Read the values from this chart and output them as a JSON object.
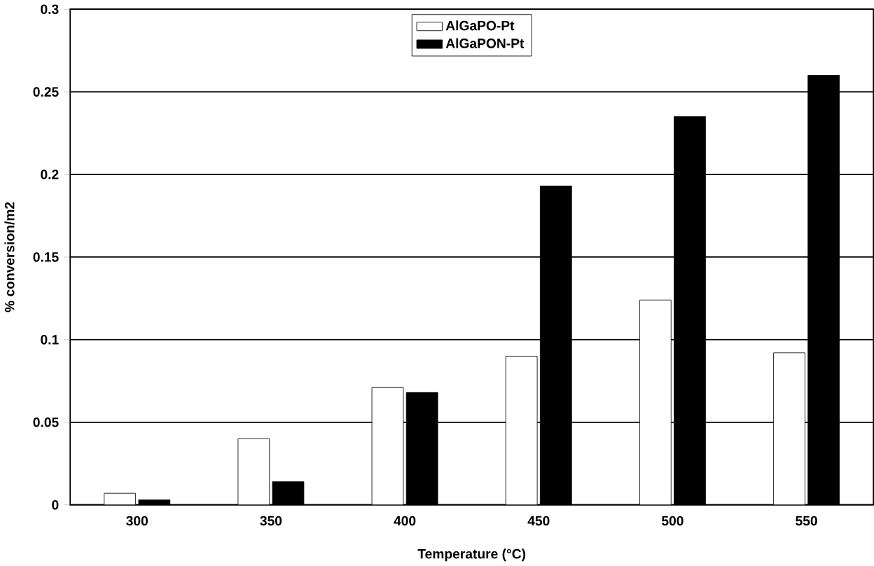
{
  "chart_data": {
    "type": "bar",
    "xlabel": "Temperature (°C)",
    "ylabel": "%   conversion/m2",
    "categories": [
      "300",
      "350",
      "400",
      "450",
      "500",
      "550"
    ],
    "series": [
      {
        "name": "AlGaPO-Pt",
        "color": "#ffffff",
        "values": [
          0.007,
          0.04,
          0.071,
          0.09,
          0.124,
          0.092
        ]
      },
      {
        "name": "AlGaPON-Pt",
        "color": "#000000",
        "values": [
          0.003,
          0.014,
          0.068,
          0.193,
          0.235,
          0.26
        ]
      }
    ],
    "ylim": [
      0,
      0.3
    ],
    "yticks": [
      0,
      0.05,
      0.1,
      0.15,
      0.2,
      0.25,
      0.3
    ],
    "grid": "y",
    "legend": "top"
  }
}
